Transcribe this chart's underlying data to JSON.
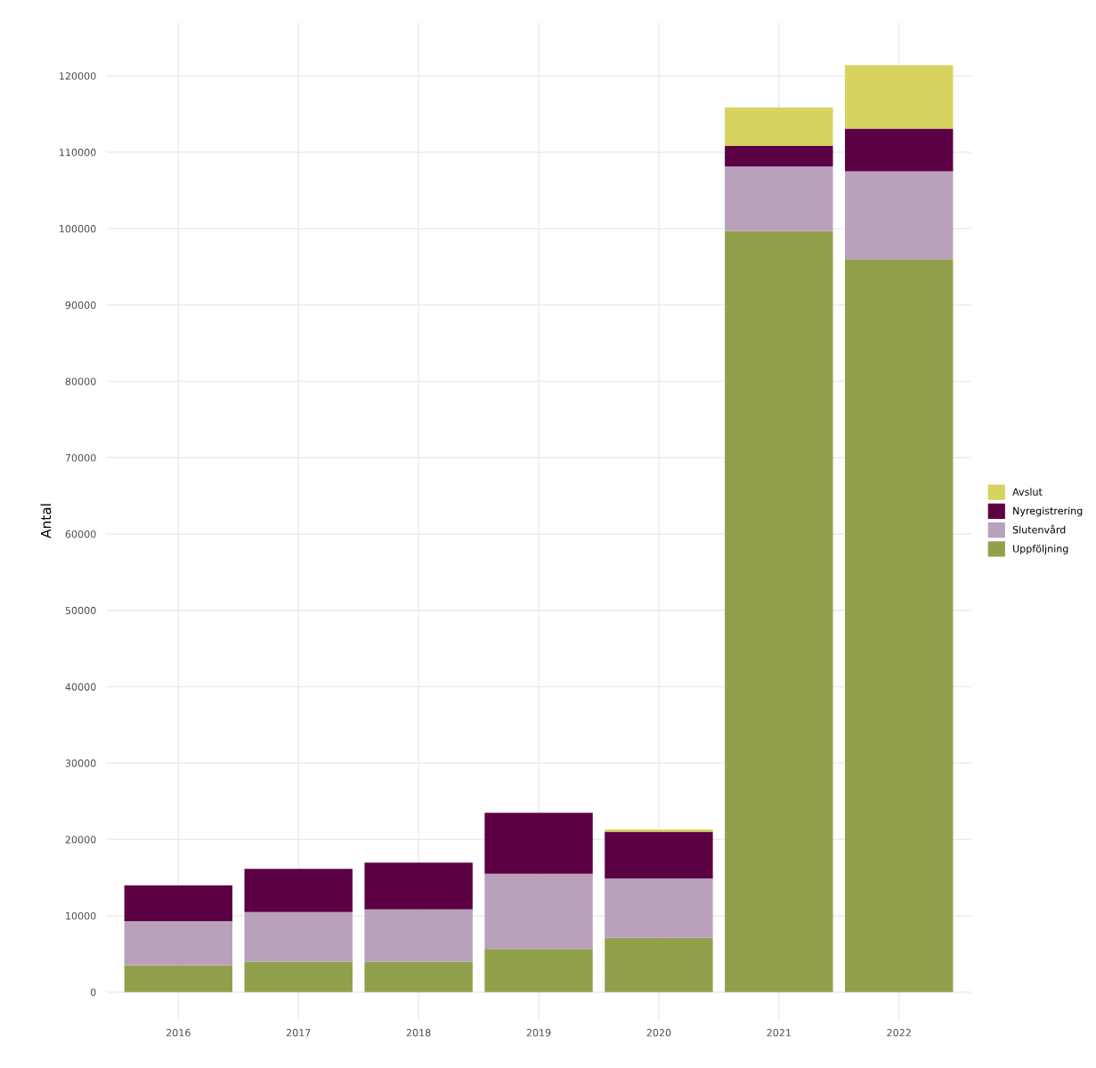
{
  "chart_data": {
    "type": "bar",
    "stacked": true,
    "ylabel": "Antal",
    "categories": [
      "2016",
      "2017",
      "2018",
      "2019",
      "2020",
      "2021",
      "2022"
    ],
    "series": [
      {
        "name": "Uppföljning",
        "color": "#92a04b",
        "values": [
          3500,
          4000,
          4000,
          5650,
          7100,
          99700,
          96000
        ]
      },
      {
        "name": "Slutenvård",
        "color": "#b9a0bb",
        "values": [
          5800,
          6500,
          6850,
          9850,
          7800,
          8450,
          11500
        ]
      },
      {
        "name": "Nyregistrering",
        "color": "#5c0044",
        "values": [
          4700,
          5650,
          6100,
          8000,
          6100,
          2700,
          5600
        ]
      },
      {
        "name": "Avslut",
        "color": "#d6d35e",
        "values": [
          0,
          0,
          0,
          0,
          300,
          5000,
          8300
        ]
      }
    ],
    "ylim": [
      -3500,
      127000
    ],
    "yticks": [
      0,
      10000,
      20000,
      30000,
      40000,
      50000,
      60000,
      70000,
      80000,
      90000,
      100000,
      110000,
      120000
    ],
    "grid": true,
    "legend": "right"
  }
}
